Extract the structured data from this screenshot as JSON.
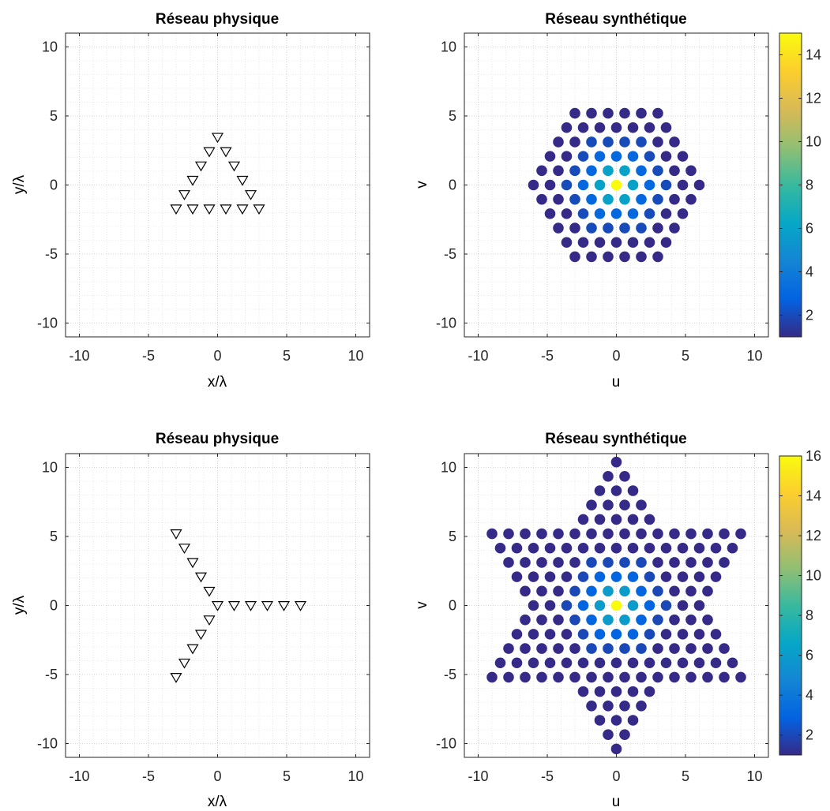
{
  "figure": {
    "colormap": "parula",
    "grid": true,
    "minor_grid": true
  },
  "chart_data": [
    {
      "id": "top-left",
      "type": "scatter",
      "title": "Réseau physique",
      "xlabel": "x/λ",
      "ylabel": "y/λ",
      "xlim": [
        -11,
        11
      ],
      "ylim": [
        -11,
        11
      ],
      "xticks": [
        -10,
        -5,
        0,
        5,
        10
      ],
      "yticks": [
        -10,
        -5,
        0,
        5,
        10
      ],
      "xtick_labels": [
        "-10",
        "-5",
        "0",
        "5",
        "10"
      ],
      "ytick_labels": [
        "-10",
        "-5",
        "0",
        "5",
        "10"
      ],
      "marker": "triangle-down",
      "marker_color": "#000000",
      "points": [
        [
          0,
          3.46
        ],
        [
          -0.6,
          2.42
        ],
        [
          0.6,
          2.42
        ],
        [
          -1.2,
          1.39
        ],
        [
          1.2,
          1.39
        ],
        [
          -1.8,
          0.35
        ],
        [
          1.8,
          0.35
        ],
        [
          -2.4,
          -0.69
        ],
        [
          2.4,
          -0.69
        ],
        [
          -3.0,
          -1.73
        ],
        [
          -1.8,
          -1.73
        ],
        [
          -0.6,
          -1.73
        ],
        [
          0.6,
          -1.73
        ],
        [
          1.8,
          -1.73
        ],
        [
          3.0,
          -1.73
        ]
      ]
    },
    {
      "id": "top-right",
      "type": "scatter",
      "title": "Réseau synthétique",
      "xlabel": "u",
      "ylabel": "v",
      "xlim": [
        -11,
        11
      ],
      "ylim": [
        -11,
        11
      ],
      "xticks": [
        -10,
        -5,
        0,
        5,
        10
      ],
      "yticks": [
        -10,
        -5,
        0,
        5,
        10
      ],
      "xtick_labels": [
        "-10",
        "-5",
        "0",
        "5",
        "10"
      ],
      "ytick_labels": [
        "-10",
        "-5",
        "0",
        "5",
        "10"
      ],
      "marker": "filled-circle",
      "pattern": "hexagon",
      "lattice_spacing": 1.2,
      "max_radius": 5,
      "center_value": 15,
      "ring_values": [
        1,
        6,
        3,
        2,
        1
      ],
      "color_range": [
        1,
        15
      ],
      "colorbar": {
        "ticks": [
          2,
          4,
          6,
          8,
          10,
          12,
          14
        ],
        "tick_labels": [
          "2",
          "4",
          "6",
          "8",
          "10",
          "12",
          "14"
        ]
      }
    },
    {
      "id": "bottom-left",
      "type": "scatter",
      "title": "Réseau physique",
      "xlabel": "x/λ",
      "ylabel": "y/λ",
      "xlim": [
        -11,
        11
      ],
      "ylim": [
        -11,
        11
      ],
      "xticks": [
        -10,
        -5,
        0,
        5,
        10
      ],
      "yticks": [
        -10,
        -5,
        0,
        5,
        10
      ],
      "xtick_labels": [
        "-10",
        "-5",
        "0",
        "5",
        "10"
      ],
      "ytick_labels": [
        "-10",
        "-5",
        "0",
        "5",
        "10"
      ],
      "marker": "triangle-down",
      "marker_color": "#000000",
      "points": [
        [
          0,
          0
        ],
        [
          1.2,
          0
        ],
        [
          2.4,
          0
        ],
        [
          3.6,
          0
        ],
        [
          4.8,
          0
        ],
        [
          6.0,
          0
        ],
        [
          -0.6,
          1.04
        ],
        [
          -1.2,
          2.08
        ],
        [
          -1.8,
          3.12
        ],
        [
          -2.4,
          4.16
        ],
        [
          -3.0,
          5.2
        ],
        [
          -0.6,
          -1.04
        ],
        [
          -1.2,
          -2.08
        ],
        [
          -1.8,
          -3.12
        ],
        [
          -2.4,
          -4.16
        ],
        [
          -3.0,
          -5.2
        ]
      ]
    },
    {
      "id": "bottom-right",
      "type": "scatter",
      "title": "Réseau synthétique",
      "xlabel": "u",
      "ylabel": "v",
      "xlim": [
        -11,
        11
      ],
      "ylim": [
        -11,
        11
      ],
      "xticks": [
        -10,
        -5,
        0,
        5,
        10
      ],
      "yticks": [
        -10,
        -5,
        0,
        5,
        10
      ],
      "xtick_labels": [
        "-10",
        "-5",
        "0",
        "5",
        "10"
      ],
      "ytick_labels": [
        "-10",
        "-5",
        "0",
        "5",
        "10"
      ],
      "marker": "filled-circle",
      "pattern": "hexagram",
      "lattice_spacing": 1.2,
      "max_radius": 10,
      "center_value": 16,
      "ring_values": [
        1,
        6,
        3,
        2,
        1,
        1,
        1,
        1,
        1,
        1,
        1
      ],
      "color_range": [
        1,
        16
      ],
      "colorbar": {
        "ticks": [
          2,
          4,
          6,
          8,
          10,
          12,
          14,
          16
        ],
        "tick_labels": [
          "2",
          "4",
          "6",
          "8",
          "10",
          "12",
          "14",
          "16"
        ]
      }
    }
  ]
}
